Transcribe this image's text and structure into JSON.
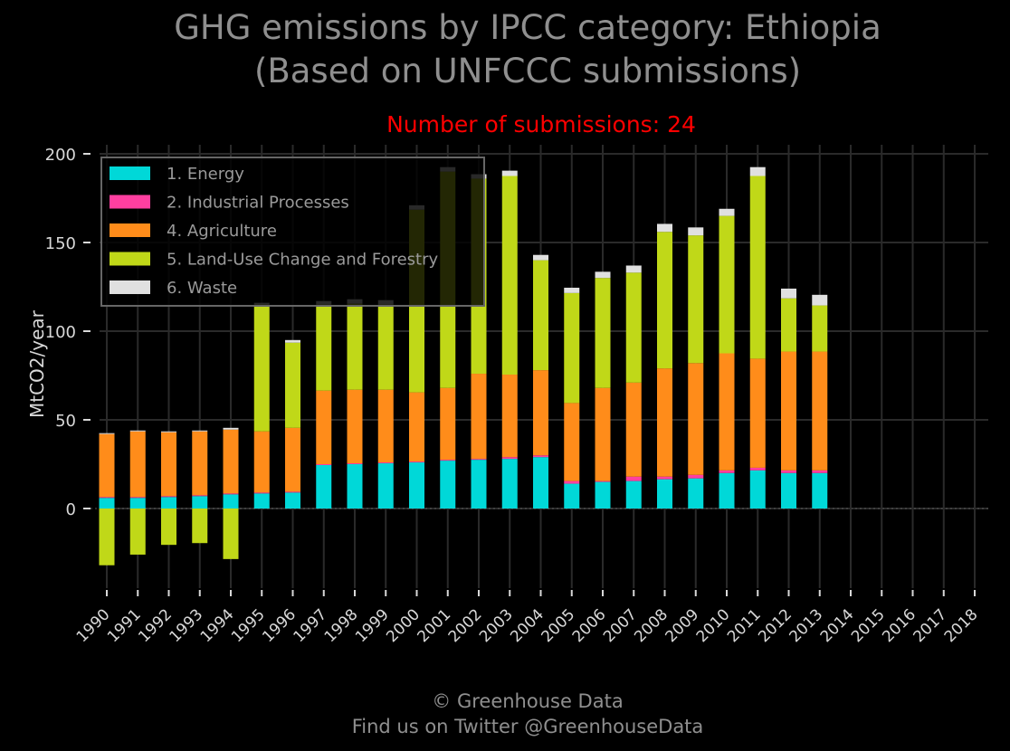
{
  "header": {
    "title_line1": "GHG emissions by IPCC category: Ethiopia",
    "title_line2": "(Based on UNFCCC submissions)",
    "submissions": "Number of submissions: 24"
  },
  "footer": {
    "line1": "© Greenhouse Data",
    "line2": "Find us on Twitter @GreenhouseData"
  },
  "colors": {
    "energy": "#00d8d8",
    "industrial": "#ff3fa0",
    "agriculture": "#ff8c1a",
    "lulucf": "#c0d818",
    "waste": "#e0e0e0",
    "grid": "#2a2a2a",
    "axis_text": "#d8d8d8"
  },
  "chart_data": {
    "type": "bar",
    "stacked": true,
    "ylabel": "MtCO2/year",
    "ylim": [
      -45,
      200
    ],
    "yticks": [
      0,
      50,
      100,
      150,
      200
    ],
    "legend_position": "top-left",
    "grid": true,
    "categories": [
      "1990",
      "1991",
      "1992",
      "1993",
      "1994",
      "1995",
      "1996",
      "1997",
      "1998",
      "1999",
      "2000",
      "2001",
      "2002",
      "2003",
      "2004",
      "2005",
      "2006",
      "2007",
      "2008",
      "2009",
      "2010",
      "2011",
      "2012",
      "2013",
      "2014",
      "2015",
      "2016",
      "2017",
      "2018"
    ],
    "series": [
      {
        "name": "1. Energy",
        "color": "#00d8d8",
        "values": [
          6,
          6,
          6.5,
          7,
          8,
          8.5,
          9,
          24.5,
          25,
          25.5,
          26,
          27,
          27.5,
          28,
          29,
          14,
          15,
          15.5,
          16.5,
          17,
          20,
          21.5,
          20,
          20,
          null,
          null,
          null,
          null,
          null
        ]
      },
      {
        "name": "2. Industrial Processes",
        "color": "#ff3fa0",
        "values": [
          0.5,
          0.5,
          0.5,
          0.5,
          0.5,
          0.5,
          0.5,
          0.5,
          0.5,
          0.5,
          0.5,
          0.5,
          0.5,
          1,
          1,
          1.5,
          0.5,
          2.5,
          1.5,
          2,
          1.5,
          1.5,
          1.5,
          1.5,
          null,
          null,
          null,
          null,
          null
        ]
      },
      {
        "name": "4. Agriculture",
        "color": "#ff8c1a",
        "values": [
          35.5,
          37,
          36,
          36,
          36,
          34.5,
          36,
          41.5,
          41.5,
          41,
          39,
          40.5,
          48,
          46.5,
          48,
          44,
          52.5,
          53,
          61,
          63,
          66,
          61.5,
          67,
          67,
          null,
          null,
          null,
          null,
          null
        ]
      },
      {
        "name": "5. Land-Use Change and Forestry",
        "color": "#c0d818",
        "values": [
          -32,
          -26,
          -20.5,
          -19.5,
          -28.5,
          71.5,
          48,
          48.5,
          48.5,
          48,
          103,
          122,
          110,
          112,
          62,
          62,
          62,
          62,
          77,
          72,
          77.5,
          103,
          30,
          26,
          null,
          null,
          null,
          null,
          null
        ]
      },
      {
        "name": "6. Waste",
        "color": "#e0e0e0",
        "values": [
          0.5,
          0.5,
          0.5,
          0.5,
          1,
          1,
          1.5,
          2,
          2.5,
          2.5,
          2.5,
          2.5,
          2.5,
          3,
          3,
          3,
          3.5,
          4,
          4.5,
          4.5,
          4,
          5,
          5.5,
          6,
          null,
          null,
          null,
          null,
          null
        ]
      }
    ]
  }
}
